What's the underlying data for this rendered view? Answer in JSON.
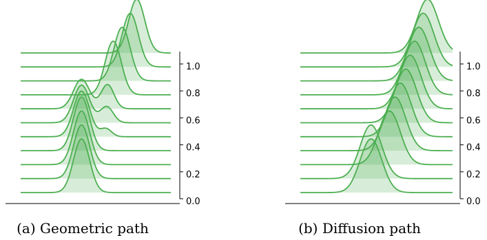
{
  "colors": {
    "line": "#4caf50",
    "fill": "#4caf50",
    "axis": "#000000"
  },
  "chart_data": [
    {
      "type": "area",
      "title": "",
      "caption": "(a) Geometric path",
      "xlabel": "",
      "ylabel": "",
      "y_ticks": [
        "0.0",
        "0.2",
        "0.4",
        "0.6",
        "0.8",
        "1.0"
      ],
      "y_tick_values": [
        0.0,
        0.2,
        0.4,
        0.6,
        0.8,
        1.0
      ],
      "ylim": [
        0.0,
        1.1
      ],
      "style": "ridgeline",
      "grid": false,
      "legend": "none",
      "series": [
        {
          "t": 0.0,
          "components": [
            {
              "mean": 0.0,
              "std": 0.1,
              "weight": 1.0
            }
          ]
        },
        {
          "t": 0.1,
          "components": [
            {
              "mean": 0.0,
              "std": 0.1,
              "weight": 1.0
            }
          ]
        },
        {
          "t": 0.2,
          "components": [
            {
              "mean": 0.0,
              "std": 0.1,
              "weight": 1.0
            }
          ]
        },
        {
          "t": 0.3,
          "components": [
            {
              "mean": 0.0,
              "std": 0.1,
              "weight": 1.0
            }
          ]
        },
        {
          "t": 0.4,
          "components": [
            {
              "mean": 0.0,
              "std": 0.1,
              "weight": 0.85
            },
            {
              "mean": 0.3,
              "std": 0.07,
              "weight": 0.15
            }
          ]
        },
        {
          "t": 0.5,
          "components": [
            {
              "mean": 0.0,
              "std": 0.1,
              "weight": 0.7
            },
            {
              "mean": 0.31,
              "std": 0.08,
              "weight": 0.3
            }
          ]
        },
        {
          "t": 0.6,
          "components": [
            {
              "mean": 0.0,
              "std": 0.1,
              "weight": 0.55
            },
            {
              "mean": 0.32,
              "std": 0.08,
              "weight": 0.45
            }
          ]
        },
        {
          "t": 0.7,
          "components": [
            {
              "mean": 0.39,
              "std": 0.1,
              "weight": 1.0
            }
          ]
        },
        {
          "t": 0.8,
          "components": [
            {
              "mean": 0.5,
              "std": 0.1,
              "weight": 1.0
            }
          ]
        },
        {
          "t": 0.9,
          "components": [
            {
              "mean": 0.6,
              "std": 0.1,
              "weight": 1.0
            }
          ]
        },
        {
          "t": 1.0,
          "components": [
            {
              "mean": 0.68,
              "std": 0.1,
              "weight": 1.0
            }
          ]
        }
      ]
    },
    {
      "type": "area",
      "title": "",
      "caption": "(b) Diffusion path",
      "xlabel": "",
      "ylabel": "",
      "y_ticks": [
        "0.0",
        "0.2",
        "0.4",
        "0.6",
        "0.8",
        "1.0"
      ],
      "y_tick_values": [
        0.0,
        0.2,
        0.4,
        0.6,
        0.8,
        1.0
      ],
      "ylim": [
        0.0,
        1.1
      ],
      "style": "ridgeline",
      "grid": false,
      "legend": "none",
      "series": [
        {
          "t": 0.0,
          "components": [
            {
              "mean": 0.3,
              "std": 0.1,
              "weight": 1.0
            }
          ]
        },
        {
          "t": 0.1,
          "components": [
            {
              "mean": 0.3,
              "std": 0.1,
              "weight": 1.0
            }
          ]
        },
        {
          "t": 0.2,
          "components": [
            {
              "mean": 0.47,
              "std": 0.1,
              "weight": 1.0
            }
          ]
        },
        {
          "t": 0.3,
          "components": [
            {
              "mean": 0.52,
              "std": 0.1,
              "weight": 1.0
            }
          ]
        },
        {
          "t": 0.4,
          "components": [
            {
              "mean": 0.57,
              "std": 0.1,
              "weight": 1.0
            }
          ]
        },
        {
          "t": 0.5,
          "components": [
            {
              "mean": 0.62,
              "std": 0.1,
              "weight": 1.0
            }
          ]
        },
        {
          "t": 0.6,
          "components": [
            {
              "mean": 0.66,
              "std": 0.1,
              "weight": 1.0
            }
          ]
        },
        {
          "t": 0.7,
          "components": [
            {
              "mean": 0.7,
              "std": 0.1,
              "weight": 1.0
            }
          ]
        },
        {
          "t": 0.8,
          "components": [
            {
              "mean": 0.74,
              "std": 0.1,
              "weight": 1.0
            }
          ]
        },
        {
          "t": 0.9,
          "components": [
            {
              "mean": 0.78,
              "std": 0.1,
              "weight": 1.0
            }
          ]
        },
        {
          "t": 1.0,
          "components": [
            {
              "mean": 0.82,
              "std": 0.1,
              "weight": 1.0
            }
          ]
        }
      ]
    }
  ]
}
